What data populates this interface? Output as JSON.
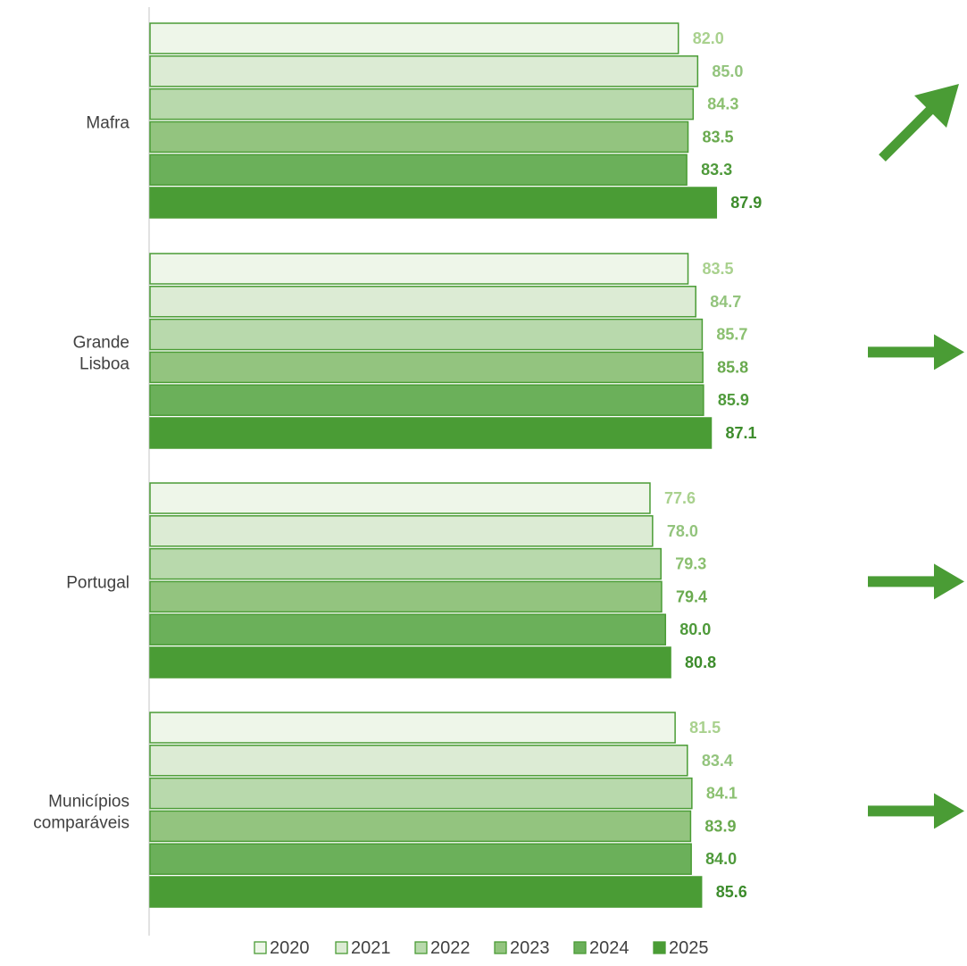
{
  "chart_data": {
    "type": "bar",
    "orientation": "horizontal",
    "categories": [
      [
        "Mafra"
      ],
      [
        "Grande",
        "Lisboa"
      ],
      [
        "Portugal"
      ],
      [
        "Municípios",
        "comparáveis"
      ]
    ],
    "series": [
      {
        "name": "2020",
        "values": [
          82.0,
          83.5,
          77.6,
          81.5
        ],
        "fill": "#eef6e9",
        "label_color": "#a9d18e"
      },
      {
        "name": "2021",
        "values": [
          85.0,
          84.7,
          78.0,
          83.4
        ],
        "fill": "#dcebd4",
        "label_color": "#93c47d"
      },
      {
        "name": "2022",
        "values": [
          84.3,
          85.7,
          79.3,
          84.1
        ],
        "fill": "#b8d9ac",
        "label_color": "#8bc070"
      },
      {
        "name": "2023",
        "values": [
          83.5,
          85.8,
          79.4,
          83.9
        ],
        "fill": "#93c47f",
        "label_color": "#6aaa4f"
      },
      {
        "name": "2024",
        "values": [
          83.3,
          85.9,
          80.0,
          84.0
        ],
        "fill": "#6bb05a",
        "label_color": "#4f9a3b"
      },
      {
        "name": "2025",
        "values": [
          87.9,
          87.1,
          80.8,
          85.6
        ],
        "fill": "#4a9c35",
        "label_color": "#3d8c2c"
      }
    ],
    "value_labels": [
      [
        "82.0",
        "85.0",
        "84.3",
        "83.5",
        "83.3",
        "87.9"
      ],
      [
        "83.5",
        "84.7",
        "85.7",
        "85.8",
        "85.9",
        "87.1"
      ],
      [
        "77.6",
        "78.0",
        "79.3",
        "79.4",
        "80.0",
        "80.8"
      ],
      [
        "81.5",
        "83.4",
        "84.1",
        "83.9",
        "84.0",
        "85.6"
      ]
    ],
    "trend_arrows": [
      "up",
      "right",
      "right",
      "right"
    ],
    "xlim": [
      0,
      100
    ],
    "legend_position": "bottom",
    "grid": false,
    "title": "",
    "xlabel": "",
    "ylabel": "",
    "colors": {
      "border": "#4a9c35",
      "axis": "#d9d9d9",
      "arrow": "#4a9c35"
    }
  }
}
